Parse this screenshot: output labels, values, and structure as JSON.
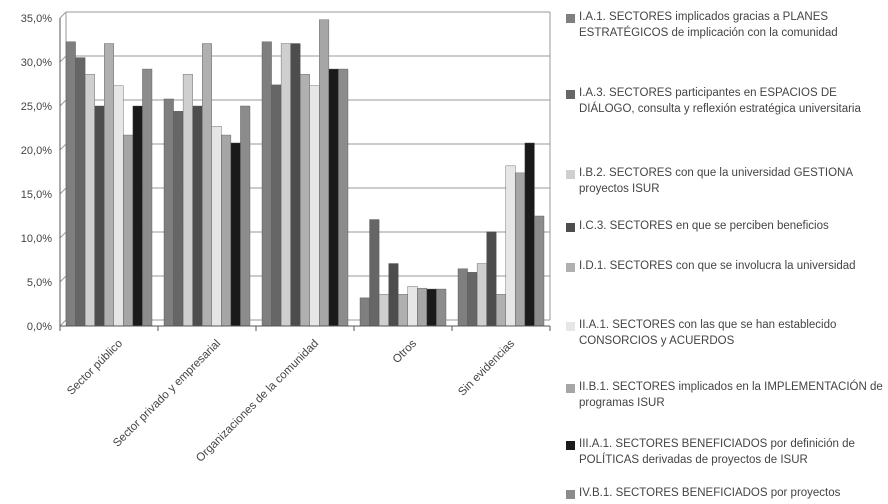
{
  "chart_data": {
    "type": "bar",
    "categories": [
      "Sector público",
      "Sector privado y empresarial",
      "Organizaciones de la comunidad",
      "Otros",
      "Sin evidencias"
    ],
    "ylim": [
      0,
      35
    ],
    "yticks": [
      "0,0%",
      "5,0%",
      "10,0%",
      "15,0%",
      "20,0%",
      "25,0%",
      "30,0%",
      "35,0%"
    ],
    "grid": true,
    "legend_position": "right",
    "series": [
      {
        "name": "I.A.1. SECTORES implicados gracias a PLANES ESTRATÉGICOS de implicación con la comunidad",
        "color": "#7f7f7f",
        "values": [
          32.3,
          25.8,
          32.3,
          3.2,
          6.5
        ]
      },
      {
        "name": "I.A.3. SECTORES participantes en ESPACIOS DE DIÁLOGO, consulta y reflexión estratégica universitaria",
        "color": "#666666",
        "values": [
          30.5,
          24.4,
          27.4,
          12.1,
          6.1
        ]
      },
      {
        "name": "I.B.2. SECTORES con que la universidad GESTIONA proyectos ISUR",
        "color": "#cfcfcf",
        "values": [
          28.6,
          28.6,
          32.1,
          3.6,
          7.1
        ]
      },
      {
        "name": "I.C.3. SECTORES en que se perciben beneficios",
        "color": "#4d4d4d",
        "values": [
          25.0,
          25.0,
          32.1,
          7.1,
          10.7
        ]
      },
      {
        "name": "I.D.1. SECTORES con que se involucra la universidad",
        "color": "#b0b0b0",
        "values": [
          32.1,
          32.1,
          28.6,
          3.6,
          3.6
        ]
      },
      {
        "name": "II.A.1. SECTORES con las que se han establecido CONSORCIOS y ACUERDOS",
        "color": "#e6e6e6",
        "values": [
          27.3,
          22.7,
          27.3,
          4.5,
          18.2
        ]
      },
      {
        "name": "II.B.1. SECTORES implicados en la IMPLEMENTACIÓN de programas ISUR",
        "color": "#a6a6a6",
        "values": [
          21.7,
          21.7,
          34.8,
          4.3,
          17.4
        ]
      },
      {
        "name": "III.A.1. SECTORES BENEFICIADOS por definición de POLÍTICAS derivadas de proyectos de ISUR",
        "color": "#1a1a1a",
        "values": [
          25.0,
          20.8,
          29.2,
          4.2,
          20.8
        ]
      },
      {
        "name": "IV.B.1. SECTORES BENEFICIADOS por proyectos",
        "color": "#8c8c8c",
        "values": [
          29.2,
          25.0,
          29.2,
          4.2,
          12.5
        ]
      }
    ]
  }
}
